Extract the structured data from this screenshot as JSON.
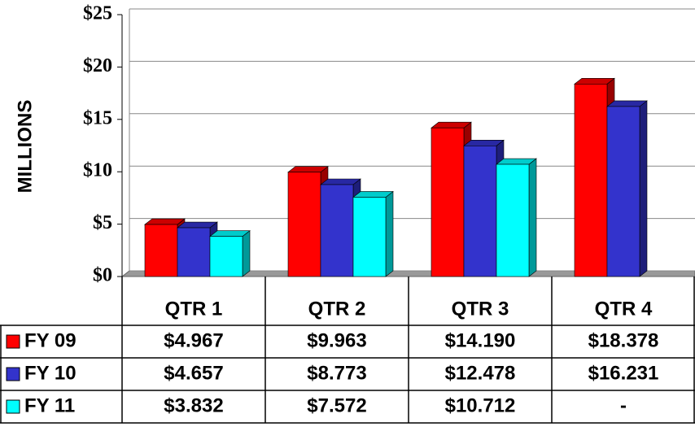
{
  "chart_data": {
    "type": "bar",
    "y_label": "MILLIONS",
    "categories": [
      "QTR 1",
      "QTR 2",
      "QTR 3",
      "QTR 4"
    ],
    "series": [
      {
        "name": "FY 09",
        "color": "#ff0000",
        "values": [
          4.967,
          9.963,
          14.19,
          18.378
        ],
        "value_labels": [
          "$4.967",
          "$9.963",
          "$14.190",
          "$18.378"
        ]
      },
      {
        "name": "FY 10",
        "color": "#3333cc",
        "values": [
          4.657,
          8.773,
          12.478,
          16.231
        ],
        "value_labels": [
          "$4.657",
          "$8.773",
          "$12.478",
          "$16.231"
        ]
      },
      {
        "name": "FY 11",
        "color": "#00ffff",
        "values": [
          3.832,
          7.572,
          10.712,
          null
        ],
        "value_labels": [
          "$3.832",
          "$7.572",
          "$10.712",
          "-"
        ]
      }
    ],
    "ylim": [
      0,
      25
    ],
    "yticks": [
      {
        "value": 0,
        "label": "$0"
      },
      {
        "value": 5,
        "label": "$5"
      },
      {
        "value": 10,
        "label": "$10"
      },
      {
        "value": 15,
        "label": "$15"
      },
      {
        "value": 20,
        "label": "$20"
      },
      {
        "value": 25,
        "label": "$25"
      }
    ],
    "grid": true
  }
}
